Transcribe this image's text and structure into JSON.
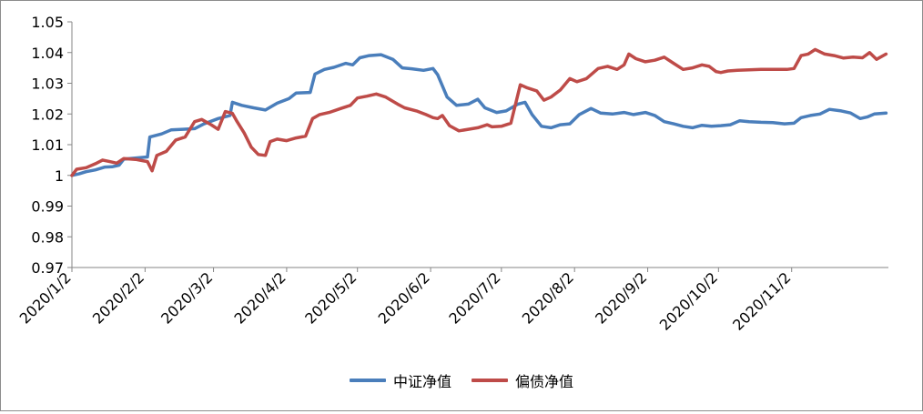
{
  "chart_data": {
    "type": "line",
    "title": "",
    "xlabel": "",
    "ylabel": "",
    "ylim": [
      0.97,
      1.05
    ],
    "yticks": [
      "0.97",
      "0.98",
      "0.99",
      "1",
      "1.01",
      "1.02",
      "1.03",
      "1.04",
      "1.05"
    ],
    "xticks": [
      "2020/1/2",
      "2020/2/2",
      "2020/3/2",
      "2020/4/2",
      "2020/5/2",
      "2020/6/2",
      "2020/7/2",
      "2020/8/2",
      "2020/9/2",
      "2020/10/2",
      "2020/11/2"
    ],
    "grid": false,
    "legend_position": "bottom",
    "series": [
      {
        "name": "中证净值",
        "color": "#4a7ebb",
        "points": [
          [
            "2020/1/2",
            1.0
          ],
          [
            "2020/1/5",
            1.0005
          ],
          [
            "2020/1/8",
            1.0012
          ],
          [
            "2020/1/12",
            1.0018
          ],
          [
            "2020/1/16",
            1.0027
          ],
          [
            "2020/1/19",
            1.0028
          ],
          [
            "2020/1/22",
            1.0033
          ],
          [
            "2020/1/24",
            1.0053
          ],
          [
            "2020/2/3",
            1.006
          ],
          [
            "2020/2/4",
            1.0125
          ],
          [
            "2020/2/9",
            1.0135
          ],
          [
            "2020/2/13",
            1.0148
          ],
          [
            "2020/2/18",
            1.015
          ],
          [
            "2020/2/23",
            1.0152
          ],
          [
            "2020/2/27",
            1.0168
          ],
          [
            "2020/3/4",
            1.0185
          ],
          [
            "2020/3/9",
            1.0195
          ],
          [
            "2020/3/10",
            1.0238
          ],
          [
            "2020/3/14",
            1.0228
          ],
          [
            "2020/3/19",
            1.022
          ],
          [
            "2020/3/24",
            1.0213
          ],
          [
            "2020/3/29",
            1.0235
          ],
          [
            "2020/4/3",
            1.025
          ],
          [
            "2020/4/6",
            1.0268
          ],
          [
            "2020/4/12",
            1.027
          ],
          [
            "2020/4/14",
            1.033
          ],
          [
            "2020/4/18",
            1.0345
          ],
          [
            "2020/4/22",
            1.0352
          ],
          [
            "2020/4/27",
            1.0365
          ],
          [
            "2020/4/30",
            1.036
          ],
          [
            "2020/5/3",
            1.0383
          ],
          [
            "2020/5/7",
            1.039
          ],
          [
            "2020/5/12",
            1.0393
          ],
          [
            "2020/5/17",
            1.0378
          ],
          [
            "2020/5/21",
            1.035
          ],
          [
            "2020/5/25",
            1.0347
          ],
          [
            "2020/5/30",
            1.0342
          ],
          [
            "2020/6/3",
            1.0348
          ],
          [
            "2020/6/5",
            1.0328
          ],
          [
            "2020/6/9",
            1.0255
          ],
          [
            "2020/6/13",
            1.0228
          ],
          [
            "2020/6/18",
            1.0232
          ],
          [
            "2020/6/22",
            1.0248
          ],
          [
            "2020/6/25",
            1.022
          ],
          [
            "2020/6/30",
            1.0205
          ],
          [
            "2020/7/4",
            1.021
          ],
          [
            "2020/7/9",
            1.0232
          ],
          [
            "2020/7/12",
            1.0238
          ],
          [
            "2020/7/15",
            1.0198
          ],
          [
            "2020/7/19",
            1.016
          ],
          [
            "2020/7/23",
            1.0155
          ],
          [
            "2020/7/27",
            1.0165
          ],
          [
            "2020/7/31",
            1.0168
          ],
          [
            "2020/8/4",
            1.0198
          ],
          [
            "2020/8/9",
            1.0218
          ],
          [
            "2020/8/13",
            1.0203
          ],
          [
            "2020/8/18",
            1.02
          ],
          [
            "2020/8/23",
            1.0205
          ],
          [
            "2020/8/27",
            1.0198
          ],
          [
            "2020/9/1",
            1.0205
          ],
          [
            "2020/9/5",
            1.0195
          ],
          [
            "2020/9/9",
            1.0175
          ],
          [
            "2020/9/13",
            1.0168
          ],
          [
            "2020/9/17",
            1.016
          ],
          [
            "2020/9/21",
            1.0155
          ],
          [
            "2020/9/25",
            1.0163
          ],
          [
            "2020/9/29",
            1.016
          ],
          [
            "2020/10/3",
            1.0162
          ],
          [
            "2020/10/7",
            1.0165
          ],
          [
            "2020/10/11",
            1.0178
          ],
          [
            "2020/10/15",
            1.0175
          ],
          [
            "2020/10/20",
            1.0173
          ],
          [
            "2020/10/25",
            1.0172
          ],
          [
            "2020/10/30",
            1.0168
          ],
          [
            "2020/11/3",
            1.017
          ],
          [
            "2020/11/6",
            1.0188
          ],
          [
            "2020/11/10",
            1.0195
          ],
          [
            "2020/11/14",
            1.02
          ],
          [
            "2020/11/18",
            1.0215
          ],
          [
            "2020/11/23",
            1.021
          ],
          [
            "2020/11/27",
            1.0203
          ],
          [
            "2020/12/1",
            1.0185
          ],
          [
            "2020/12/4",
            1.019
          ],
          [
            "2020/12/7",
            1.02
          ],
          [
            "2020/12/12",
            1.0203
          ]
        ]
      },
      {
        "name": "偏债净值",
        "color": "#be4b48",
        "points": [
          [
            "2020/1/2",
            1.0
          ],
          [
            "2020/1/4",
            1.002
          ],
          [
            "2020/1/8",
            1.0025
          ],
          [
            "2020/1/12",
            1.0038
          ],
          [
            "2020/1/15",
            1.005
          ],
          [
            "2020/1/18",
            1.0045
          ],
          [
            "2020/1/21",
            1.004
          ],
          [
            "2020/1/24",
            1.0055
          ],
          [
            "2020/1/29",
            1.0052
          ],
          [
            "2020/2/3",
            1.0045
          ],
          [
            "2020/2/5",
            1.0015
          ],
          [
            "2020/2/7",
            1.0065
          ],
          [
            "2020/2/11",
            1.0078
          ],
          [
            "2020/2/15",
            1.0115
          ],
          [
            "2020/2/19",
            1.0125
          ],
          [
            "2020/2/23",
            1.0175
          ],
          [
            "2020/2/26",
            1.0182
          ],
          [
            "2020/3/1",
            1.0165
          ],
          [
            "2020/3/4",
            1.015
          ],
          [
            "2020/3/7",
            1.0208
          ],
          [
            "2020/3/10",
            1.0202
          ],
          [
            "2020/3/12",
            1.0175
          ],
          [
            "2020/3/15",
            1.0138
          ],
          [
            "2020/3/18",
            1.0092
          ],
          [
            "2020/3/21",
            1.0068
          ],
          [
            "2020/3/24",
            1.0065
          ],
          [
            "2020/3/26",
            1.011
          ],
          [
            "2020/3/29",
            1.0118
          ],
          [
            "2020/4/2",
            1.0113
          ],
          [
            "2020/4/6",
            1.0122
          ],
          [
            "2020/4/10",
            1.0128
          ],
          [
            "2020/4/13",
            1.0185
          ],
          [
            "2020/4/16",
            1.0198
          ],
          [
            "2020/4/20",
            1.0205
          ],
          [
            "2020/4/25",
            1.0218
          ],
          [
            "2020/4/29",
            1.0228
          ],
          [
            "2020/5/2",
            1.0252
          ],
          [
            "2020/5/6",
            1.0258
          ],
          [
            "2020/5/10",
            1.0265
          ],
          [
            "2020/5/14",
            1.0255
          ],
          [
            "2020/5/19",
            1.0232
          ],
          [
            "2020/5/22",
            1.022
          ],
          [
            "2020/5/27",
            1.021
          ],
          [
            "2020/5/31",
            1.0198
          ],
          [
            "2020/6/3",
            1.0188
          ],
          [
            "2020/6/5",
            1.0185
          ],
          [
            "2020/6/7",
            1.0195
          ],
          [
            "2020/6/10",
            1.0162
          ],
          [
            "2020/6/14",
            1.0145
          ],
          [
            "2020/6/18",
            1.015
          ],
          [
            "2020/6/22",
            1.0155
          ],
          [
            "2020/6/26",
            1.0165
          ],
          [
            "2020/6/28",
            1.0158
          ],
          [
            "2020/7/2",
            1.016
          ],
          [
            "2020/7/6",
            1.017
          ],
          [
            "2020/7/10",
            1.0295
          ],
          [
            "2020/7/13",
            1.0285
          ],
          [
            "2020/7/17",
            1.0275
          ],
          [
            "2020/7/20",
            1.0245
          ],
          [
            "2020/7/23",
            1.0255
          ],
          [
            "2020/7/27",
            1.0278
          ],
          [
            "2020/7/31",
            1.0315
          ],
          [
            "2020/8/3",
            1.0305
          ],
          [
            "2020/8/7",
            1.0315
          ],
          [
            "2020/8/12",
            1.0348
          ],
          [
            "2020/8/16",
            1.0355
          ],
          [
            "2020/8/20",
            1.0345
          ],
          [
            "2020/8/23",
            1.036
          ],
          [
            "2020/8/25",
            1.0395
          ],
          [
            "2020/8/28",
            1.038
          ],
          [
            "2020/9/1",
            1.037
          ],
          [
            "2020/9/5",
            1.0375
          ],
          [
            "2020/9/9",
            1.0385
          ],
          [
            "2020/9/13",
            1.0365
          ],
          [
            "2020/9/17",
            1.0345
          ],
          [
            "2020/9/21",
            1.035
          ],
          [
            "2020/9/25",
            1.036
          ],
          [
            "2020/9/28",
            1.0355
          ],
          [
            "2020/10/1",
            1.0338
          ],
          [
            "2020/10/3",
            1.0335
          ],
          [
            "2020/10/6",
            1.034
          ],
          [
            "2020/10/10",
            1.0342
          ],
          [
            "2020/10/20",
            1.0345
          ],
          [
            "2020/10/31",
            1.0345
          ],
          [
            "2020/11/3",
            1.0348
          ],
          [
            "2020/11/6",
            1.039
          ],
          [
            "2020/11/9",
            1.0395
          ],
          [
            "2020/11/12",
            1.041
          ],
          [
            "2020/11/16",
            1.0395
          ],
          [
            "2020/11/20",
            1.039
          ],
          [
            "2020/11/24",
            1.0382
          ],
          [
            "2020/11/28",
            1.0385
          ],
          [
            "2020/12/2",
            1.0383
          ],
          [
            "2020/12/5",
            1.04
          ],
          [
            "2020/12/8",
            1.0378
          ],
          [
            "2020/12/12",
            1.0395
          ]
        ]
      }
    ]
  }
}
